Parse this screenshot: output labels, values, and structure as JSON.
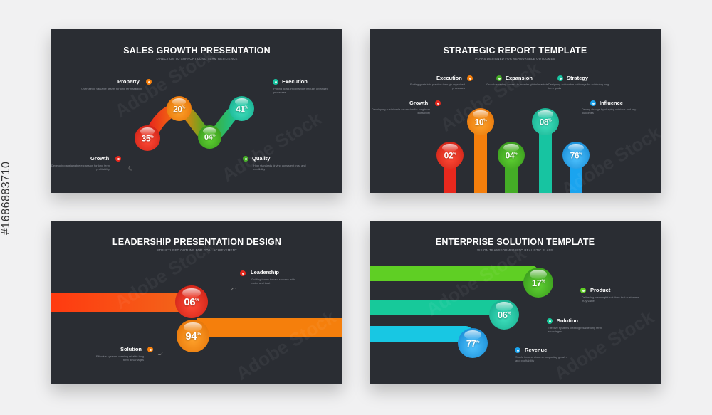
{
  "watermark": "Adobe Stock",
  "stock_id": "#1686883710",
  "colors": {
    "bg": "#2a2d33",
    "red": "#e8281d",
    "orange": "#f57f0c",
    "green": "#44ad26",
    "teal": "#17c4a1",
    "blue": "#1aa4ef",
    "lime": "#5fcf24",
    "cyan": "#18c7e3"
  },
  "slides": [
    {
      "title": "SALES GROWTH PRESENTATION",
      "subtitle": "DIRECTION TO SUPPORT LONG TERM RESILIENCE",
      "balls": [
        "35%",
        "20%",
        "04%",
        "41%"
      ],
      "items": [
        {
          "label": "Property",
          "desc": "Overseeing valuable assets for long term stability"
        },
        {
          "label": "Execution",
          "desc": "Putting goals into practice through organized processes"
        },
        {
          "label": "Growth",
          "desc": "Developing sustainable expansion for long term profitability"
        },
        {
          "label": "Quality",
          "desc": "High standards driving consistent trust and credibility"
        }
      ]
    },
    {
      "title": "STRATEGIC REPORT TEMPLATE",
      "subtitle": "PLANS DESIGNED FOR MEASURABLE OUTCOMES",
      "balls": [
        "02%",
        "10%",
        "04%",
        "08%",
        "76%"
      ],
      "items": [
        {
          "label": "Execution",
          "desc": "Putting goals into practice through organized processes"
        },
        {
          "label": "Expansion",
          "desc": "Growth enabling access to broader global markets"
        },
        {
          "label": "Strategy",
          "desc": "Designing actionable pathways for achieving long term goals"
        },
        {
          "label": "Growth",
          "desc": "Developing sustainable expansion for long term profitability"
        },
        {
          "label": "Influence",
          "desc": "Driving change by shaping opinions and key outcomes"
        }
      ]
    },
    {
      "title": "LEADERSHIP PRESENTATION DESIGN",
      "subtitle": "STRUCTURED OUTLINE FOR GOAL ACHIEVEMENT",
      "balls": [
        "06%",
        "94%"
      ],
      "items": [
        {
          "label": "Leadership",
          "desc": "Guiding teams toward success with vision and trust"
        },
        {
          "label": "Solution",
          "desc": "Effective systems creating reliable long term advantages"
        }
      ]
    },
    {
      "title": "ENTERPRISE SOLUTION TEMPLATE",
      "subtitle": "VISION TRANSFORMED INTO REALISTIC PLANS",
      "balls": [
        "17%",
        "06%",
        "77%"
      ],
      "items": [
        {
          "label": "Product",
          "desc": "Delivering meaningful solutions that customers truly value"
        },
        {
          "label": "Solution",
          "desc": "Effective systems creating reliable long term advantages"
        },
        {
          "label": "Revenue",
          "desc": "Stable income streams supporting growth and profitability"
        }
      ]
    }
  ]
}
